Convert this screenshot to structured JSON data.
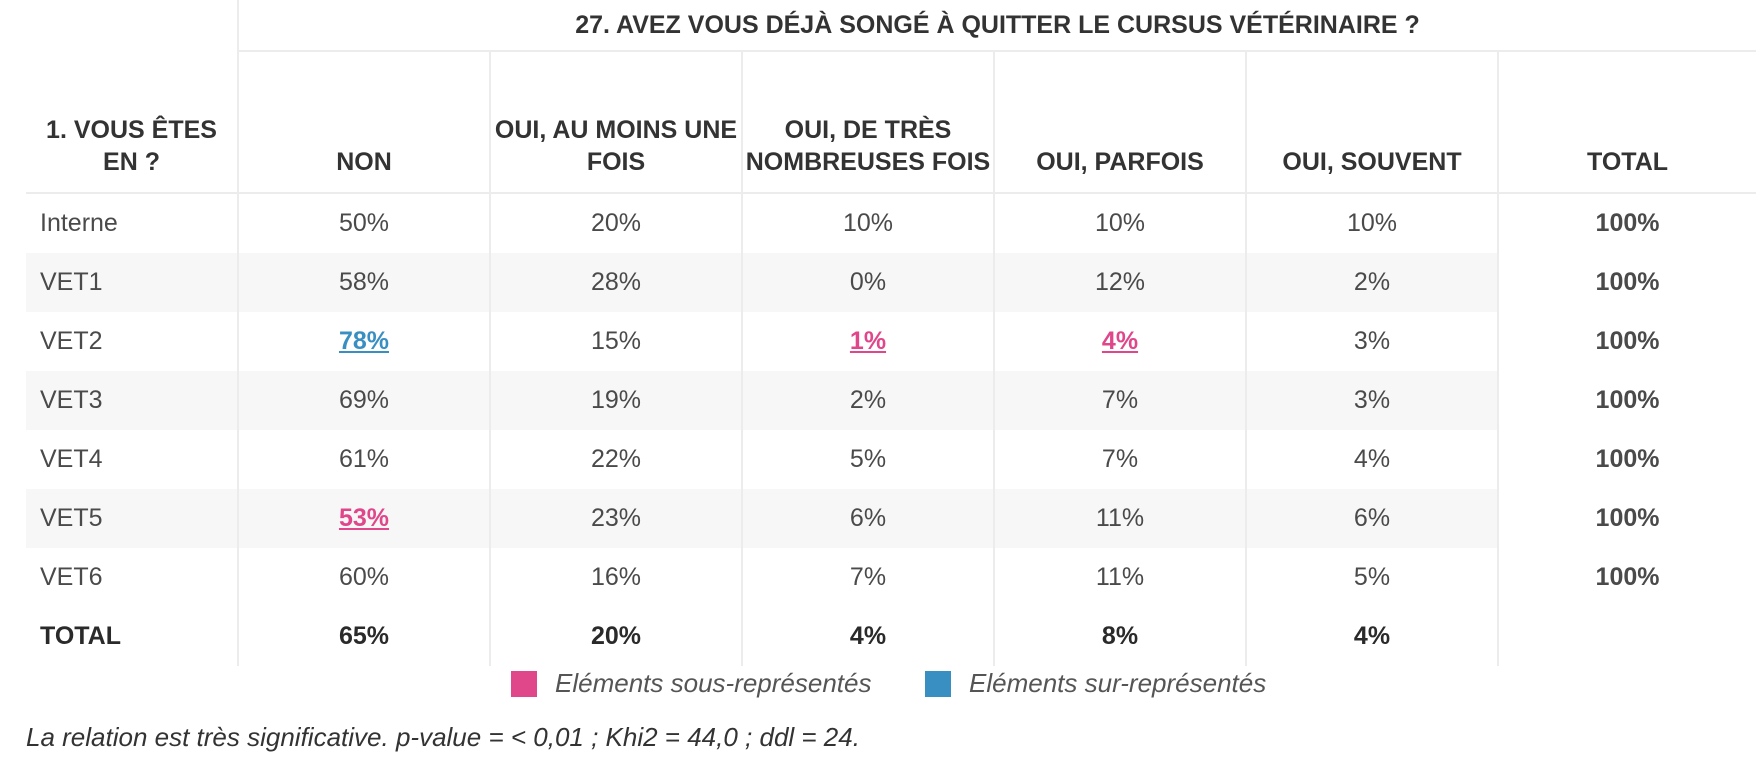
{
  "colors": {
    "under": "#e0468a",
    "over": "#3a8fc2"
  },
  "chart_data": {
    "type": "table",
    "title": "27. AVEZ VOUS DÉJÀ SONGÉ À QUITTER LE CURSUS VÉTÉRINAIRE ?",
    "row_header": "1. VOUS ÊTES EN ?",
    "columns": [
      "NON",
      "OUI, AU MOINS UNE FOIS",
      "OUI, DE TRÈS NOMBREUSES FOIS",
      "OUI, PARFOIS",
      "OUI, SOUVENT",
      "TOTAL"
    ],
    "rows": [
      {
        "label": "Interne",
        "cells": [
          {
            "v": "50%"
          },
          {
            "v": "20%"
          },
          {
            "v": "10%"
          },
          {
            "v": "10%"
          },
          {
            "v": "10%"
          }
        ],
        "total": "100%"
      },
      {
        "label": "VET1",
        "cells": [
          {
            "v": "58%"
          },
          {
            "v": "28%"
          },
          {
            "v": "0%"
          },
          {
            "v": "12%"
          },
          {
            "v": "2%"
          }
        ],
        "total": "100%"
      },
      {
        "label": "VET2",
        "cells": [
          {
            "v": "78%",
            "flag": "over"
          },
          {
            "v": "15%"
          },
          {
            "v": "1%",
            "flag": "under"
          },
          {
            "v": "4%",
            "flag": "under"
          },
          {
            "v": "3%"
          }
        ],
        "total": "100%"
      },
      {
        "label": "VET3",
        "cells": [
          {
            "v": "69%"
          },
          {
            "v": "19%"
          },
          {
            "v": "2%"
          },
          {
            "v": "7%"
          },
          {
            "v": "3%"
          }
        ],
        "total": "100%"
      },
      {
        "label": "VET4",
        "cells": [
          {
            "v": "61%"
          },
          {
            "v": "22%"
          },
          {
            "v": "5%"
          },
          {
            "v": "7%"
          },
          {
            "v": "4%"
          }
        ],
        "total": "100%"
      },
      {
        "label": "VET5",
        "cells": [
          {
            "v": "53%",
            "flag": "under"
          },
          {
            "v": "23%"
          },
          {
            "v": "6%"
          },
          {
            "v": "11%"
          },
          {
            "v": "6%"
          }
        ],
        "total": "100%"
      },
      {
        "label": "VET6",
        "cells": [
          {
            "v": "60%"
          },
          {
            "v": "16%"
          },
          {
            "v": "7%"
          },
          {
            "v": "11%"
          },
          {
            "v": "5%"
          }
        ],
        "total": "100%"
      }
    ],
    "total_row": {
      "label": "TOTAL",
      "values": [
        "65%",
        "20%",
        "4%",
        "8%",
        "4%"
      ]
    }
  },
  "legend": {
    "under_label": "Eléments sous-représentés",
    "over_label": "Eléments sur-représentés"
  },
  "note": "La relation est très significative. p-value = < 0,01 ; Khi2 = 44,0 ; ddl = 24."
}
